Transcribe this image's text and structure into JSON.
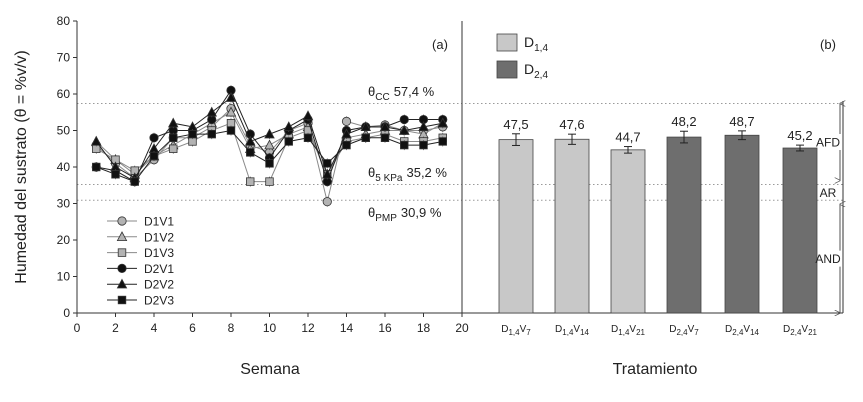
{
  "chart_data": [
    {
      "panel_label": "(a)",
      "type": "line",
      "xlabel": "Semana",
      "ylabel": "Humedad del sustrato (θ = %v/v)",
      "xlim": [
        0,
        20
      ],
      "ylim": [
        0,
        80
      ],
      "x_ticks": [
        0,
        2,
        4,
        6,
        8,
        10,
        12,
        14,
        16,
        18,
        20
      ],
      "y_ticks": [
        0,
        10,
        20,
        30,
        40,
        50,
        60,
        70,
        80
      ],
      "legend_placement": "bottom-left",
      "x": [
        1,
        2,
        3,
        4,
        5,
        6,
        7,
        8,
        9,
        10,
        11,
        12,
        13,
        14,
        15,
        16,
        17,
        18,
        19
      ],
      "series": [
        {
          "name": "D1V1",
          "marker": "circle",
          "color": "#b3b3b3",
          "values": [
            46,
            41,
            37,
            42,
            48,
            48,
            51,
            56,
            46,
            44,
            50,
            52,
            30.5,
            52.5,
            51,
            51.5,
            50,
            50,
            51
          ]
        },
        {
          "name": "D1V2",
          "marker": "triangle",
          "color": "#b3b3b3",
          "values": [
            47,
            42,
            38,
            43,
            46,
            49,
            52,
            55,
            45,
            46,
            49,
            51,
            37,
            48,
            49,
            50,
            50,
            49,
            52
          ]
        },
        {
          "name": "D1V3",
          "marker": "square",
          "color": "#b3b3b3",
          "values": [
            45,
            42,
            39,
            43,
            45,
            47,
            50,
            52,
            36,
            36,
            48,
            50,
            38,
            47,
            48,
            49,
            47,
            47,
            48
          ]
        },
        {
          "name": "D2V1",
          "marker": "circle",
          "color": "#111111",
          "values": [
            40,
            39,
            36,
            48,
            50,
            50,
            53,
            61,
            49,
            42.5,
            50,
            53,
            36,
            50,
            51,
            51,
            53,
            53,
            53
          ]
        },
        {
          "name": "D2V2",
          "marker": "triangle",
          "color": "#111111",
          "values": [
            47,
            40,
            37,
            45,
            52,
            51,
            55,
            59,
            47,
            49,
            51,
            54,
            38,
            49,
            51,
            51,
            50,
            51,
            52
          ]
        },
        {
          "name": "D2V3",
          "marker": "square",
          "color": "#111111",
          "values": [
            40,
            38,
            36,
            43,
            48,
            49,
            49,
            50,
            44,
            41,
            47,
            48,
            41,
            46,
            48,
            48,
            46,
            46,
            47
          ]
        }
      ],
      "reference_lines": [
        {
          "label_sym": "θ",
          "label_sub": "CC",
          "value_text": "57,4 %",
          "y": 57.4
        },
        {
          "label_sym": "θ",
          "label_sub": "5 KPa",
          "value_text": "35,2 %",
          "y": 35.2
        },
        {
          "label_sym": "θ",
          "label_sub": "PMP",
          "value_text": "30,9 %",
          "y": 30.9
        }
      ]
    },
    {
      "panel_label": "(b)",
      "type": "bar",
      "xlabel": "Tratamiento",
      "ylim": [
        0,
        80
      ],
      "categories": [
        {
          "base": "D",
          "sub1": "1,4",
          "mid": "V",
          "sub2": "7"
        },
        {
          "base": "D",
          "sub1": "1,4",
          "mid": "V",
          "sub2": "14"
        },
        {
          "base": "D",
          "sub1": "1,4",
          "mid": "V",
          "sub2": "21"
        },
        {
          "base": "D",
          "sub1": "2,4",
          "mid": "V",
          "sub2": "7"
        },
        {
          "base": "D",
          "sub1": "2,4",
          "mid": "V",
          "sub2": "14"
        },
        {
          "base": "D",
          "sub1": "2,4",
          "mid": "V",
          "sub2": "21"
        }
      ],
      "values": [
        47.5,
        47.6,
        44.7,
        48.2,
        48.7,
        45.2
      ],
      "value_labels": [
        "47,5",
        "47,6",
        "44,7",
        "48,2",
        "48,7",
        "45,2"
      ],
      "errors": [
        1.6,
        1.4,
        0.9,
        1.6,
        1.2,
        0.8
      ],
      "bar_group": [
        0,
        0,
        0,
        1,
        1,
        1
      ],
      "legend": [
        {
          "base": "D",
          "sub": "1,4",
          "color": "#c8c8c8"
        },
        {
          "base": "D",
          "sub": "2,4",
          "color": "#6e6e6e"
        }
      ],
      "legend_placement": "top-left",
      "zones": [
        {
          "label": "AFD",
          "from": 57.4,
          "to": 35.2
        },
        {
          "label": "AR",
          "from": 35.2,
          "to": 30.9
        },
        {
          "label": "AND",
          "from": 30.9,
          "to": 0
        }
      ]
    }
  ]
}
